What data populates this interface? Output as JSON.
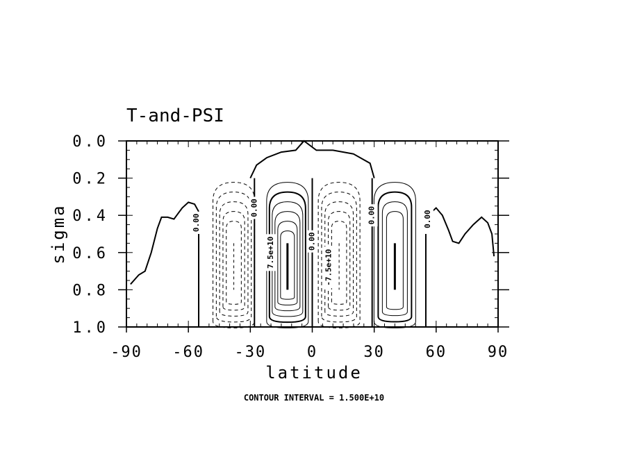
{
  "chart_data": {
    "type": "contour",
    "title": "T-and-PSI",
    "xlabel": "latitude",
    "ylabel": "sigma",
    "xlim": [
      -90,
      90
    ],
    "ylim": [
      1.0,
      0.0
    ],
    "x_ticks": [
      "-90",
      "-60",
      "-30",
      "0",
      "30",
      "60",
      "90"
    ],
    "y_ticks": [
      "0.0",
      "0.2",
      "0.4",
      "0.6",
      "0.8",
      "1.0"
    ],
    "footer": "CONTOUR INTERVAL = 1.500E+10",
    "contour_interval": 15000000000.0,
    "contour_labels": [
      {
        "text": "0.00",
        "lat": -56,
        "sigma": 0.44
      },
      {
        "text": "0.00",
        "lat": -28,
        "sigma": 0.36
      },
      {
        "text": "7.5e+10",
        "lat": -20,
        "sigma": 0.6
      },
      {
        "text": "0.00",
        "lat": 0,
        "sigma": 0.54
      },
      {
        "text": "-7.5e+10",
        "lat": 8,
        "sigma": 0.68
      },
      {
        "text": "0.00",
        "lat": 29,
        "sigma": 0.4
      },
      {
        "text": "0.00",
        "lat": 56,
        "sigma": 0.42
      }
    ],
    "cells": [
      {
        "center_lat": -38,
        "center_sigma": 0.6,
        "sign": "negative",
        "levels": 5
      },
      {
        "center_lat": -12,
        "center_sigma": 0.62,
        "sign": "positive",
        "levels": 6
      },
      {
        "center_lat": 13,
        "center_sigma": 0.62,
        "sign": "negative",
        "levels": 5
      },
      {
        "center_lat": 40,
        "center_sigma": 0.64,
        "sign": "positive",
        "levels": 4
      }
    ],
    "zero_line_left": [
      {
        "lat": -88,
        "sigma": 0.77
      },
      {
        "lat": -84,
        "sigma": 0.72
      },
      {
        "lat": -81,
        "sigma": 0.7
      },
      {
        "lat": -78,
        "sigma": 0.6
      },
      {
        "lat": -75,
        "sigma": 0.47
      },
      {
        "lat": -73,
        "sigma": 0.41
      },
      {
        "lat": -70,
        "sigma": 0.41
      },
      {
        "lat": -67,
        "sigma": 0.42
      },
      {
        "lat": -63,
        "sigma": 0.36
      },
      {
        "lat": -60,
        "sigma": 0.33
      },
      {
        "lat": -57,
        "sigma": 0.34
      },
      {
        "lat": -55,
        "sigma": 0.38
      }
    ],
    "zero_line_right": [
      {
        "lat": 57,
        "sigma": 0.39
      },
      {
        "lat": 60,
        "sigma": 0.36
      },
      {
        "lat": 63,
        "sigma": 0.4
      },
      {
        "lat": 66,
        "sigma": 0.48
      },
      {
        "lat": 68,
        "sigma": 0.54
      },
      {
        "lat": 71,
        "sigma": 0.55
      },
      {
        "lat": 74,
        "sigma": 0.5
      },
      {
        "lat": 78,
        "sigma": 0.45
      },
      {
        "lat": 82,
        "sigma": 0.41
      },
      {
        "lat": 85,
        "sigma": 0.44
      },
      {
        "lat": 87,
        "sigma": 0.5
      },
      {
        "lat": 88,
        "sigma": 0.62
      }
    ],
    "zero_line_top": [
      {
        "lat": -30,
        "sigma": 0.2
      },
      {
        "lat": -27,
        "sigma": 0.13
      },
      {
        "lat": -22,
        "sigma": 0.09
      },
      {
        "lat": -15,
        "sigma": 0.06
      },
      {
        "lat": -8,
        "sigma": 0.05
      },
      {
        "lat": -4,
        "sigma": 0.0
      },
      {
        "lat": 2,
        "sigma": 0.05
      },
      {
        "lat": 10,
        "sigma": 0.05
      },
      {
        "lat": 20,
        "sigma": 0.07
      },
      {
        "lat": 28,
        "sigma": 0.12
      },
      {
        "lat": 30,
        "sigma": 0.2
      }
    ],
    "colors": {
      "line": "#000000",
      "background": "#ffffff"
    }
  }
}
